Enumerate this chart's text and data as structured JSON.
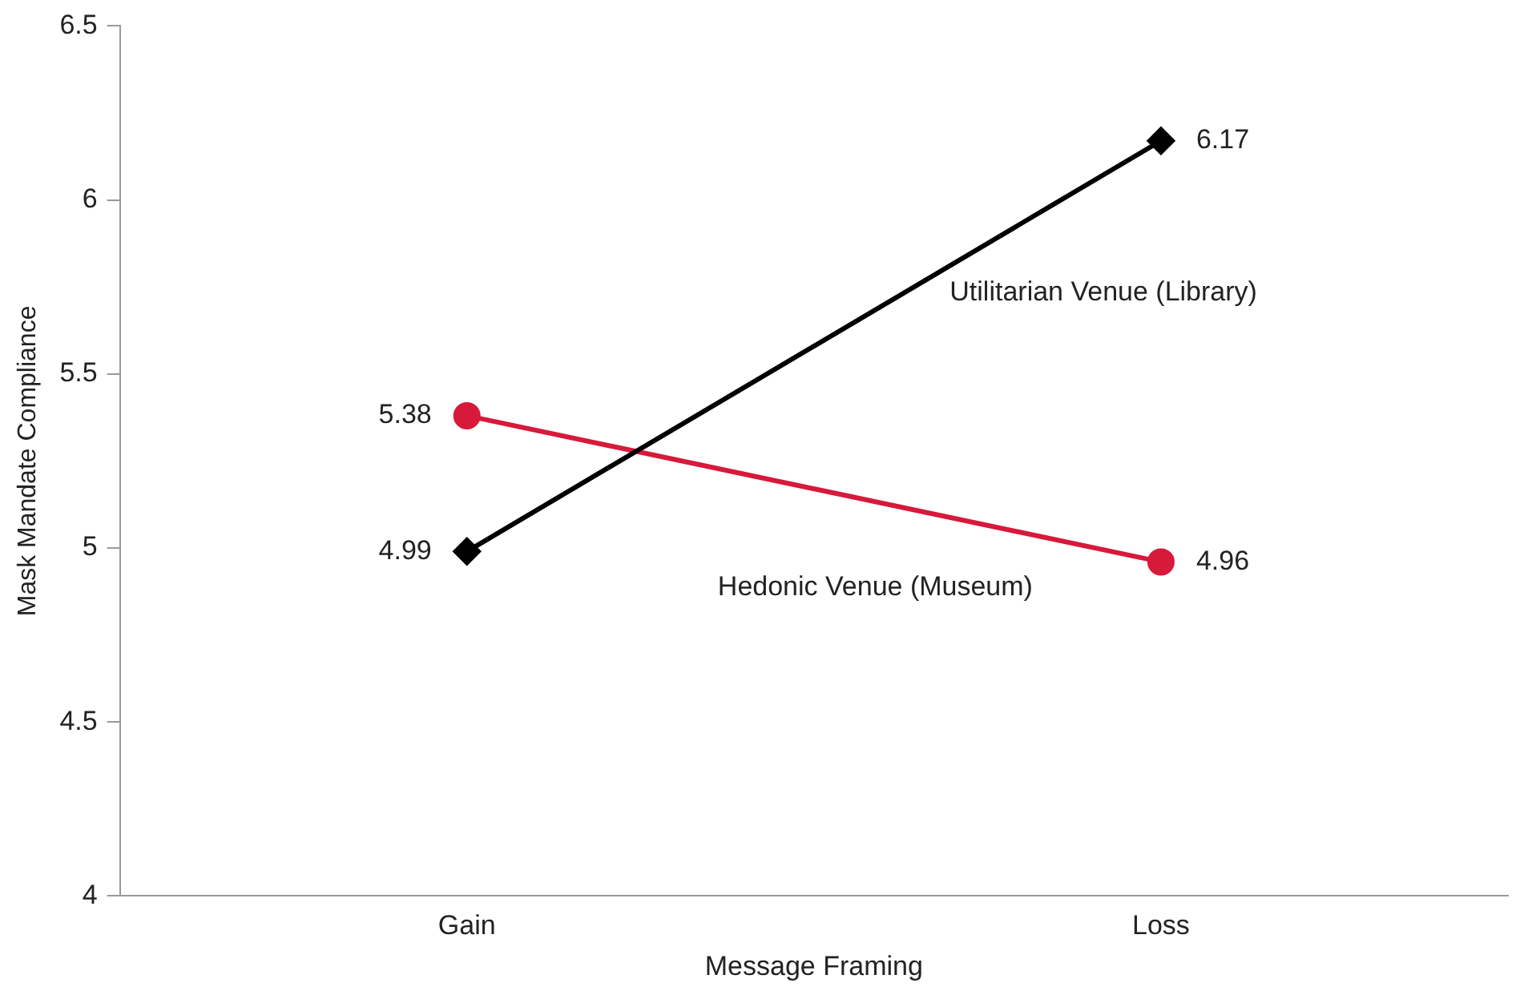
{
  "chart_data": {
    "type": "line",
    "xlabel": "Message Framing",
    "ylabel": "Mask Mandate Compliance",
    "categories": [
      "Gain",
      "Loss"
    ],
    "series": [
      {
        "name": "Utilitarian Venue (Library)",
        "color": "#000000",
        "values": [
          4.99,
          6.17
        ],
        "marker": "diamond"
      },
      {
        "name": "Hedonic Venue (Museum)",
        "color": "#d7193a",
        "values": [
          5.38,
          4.96
        ],
        "marker": "circle"
      }
    ],
    "ylim": [
      4,
      6.5
    ],
    "yticks": [
      4,
      4.5,
      5,
      5.5,
      6,
      6.5
    ],
    "grid": false,
    "legend": false,
    "data_labels": true,
    "line_style": "solid"
  }
}
